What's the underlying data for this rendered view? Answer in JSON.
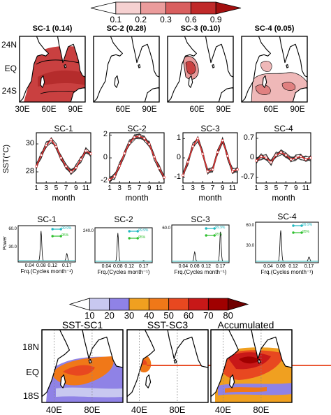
{
  "colorbar_top": {
    "ticks": [
      "0.1",
      "0.2",
      "0.3",
      "0.6",
      "0.9"
    ],
    "colors": [
      "#ffffff",
      "#f6d1d1",
      "#eb9c9c",
      "#d95f5f",
      "#c02a2a",
      "#a30f0f"
    ]
  },
  "maps_row1": {
    "titles": [
      "SC-1 (0.14)",
      "SC-2 (0.28)",
      "SC-3 (0.10)",
      "SC-4 (0.05)"
    ],
    "lat_labels": [
      "24N",
      "EQ",
      "24S"
    ],
    "lon_labels": [
      "30E",
      "60E",
      "90E"
    ]
  },
  "ts_row": {
    "titles": [
      "SC-1",
      "SC-2",
      "SC-3",
      "SC-4"
    ],
    "ylabel": "SST(°C)",
    "xlabel": "month",
    "xticks": [
      "1",
      "3",
      "5",
      "7",
      "9",
      "11"
    ],
    "yticks": [
      [
        "30",
        "28"
      ],
      [
        "2",
        "0",
        "-2"
      ],
      [
        "1",
        "0",
        "-1"
      ],
      [
        "0.7",
        "0",
        "-0.7"
      ]
    ]
  },
  "spectra_row": {
    "titles": [
      "SC-1",
      "SC-2",
      "SC-3",
      "SC-4"
    ],
    "ylabel": "Power",
    "xlabel": "Frq.(Cycles month⁻¹)",
    "xticks": [
      "0.04",
      "0.08",
      "0.12",
      "0.17"
    ],
    "yticks": [
      [
        "60.0",
        "30.0"
      ],
      [
        "240.0"
      ],
      [
        "60.0"
      ],
      [
        "60.0",
        "30.0"
      ]
    ],
    "legend": [
      "99.9%",
      "95%"
    ]
  },
  "colorbar_bottom": {
    "ticks": [
      "10",
      "20",
      "30",
      "40",
      "50",
      "60",
      "70",
      "80"
    ],
    "colors": [
      "#ffffff",
      "#c8c8f0",
      "#8f82e6",
      "#f0a020",
      "#f07818",
      "#e84820",
      "#c81818",
      "#a00000",
      "#700000"
    ]
  },
  "maps_row2": {
    "titles": [
      "SST-SC1",
      "SST-SC3",
      "Accumulated"
    ],
    "lat_labels": [
      "18N",
      "EQ",
      "18S"
    ],
    "lon_labels": [
      "40E",
      "80E"
    ]
  },
  "chart_data": [
    {
      "type": "line",
      "title": "SC-1",
      "xlabel": "month",
      "ylabel": "SST(°C)",
      "x": [
        1,
        2,
        3,
        4,
        5,
        6,
        7,
        8,
        9,
        10,
        11,
        12
      ],
      "values": [
        28.4,
        29.2,
        29.9,
        30.3,
        29.8,
        29.0,
        28.4,
        28.0,
        28.3,
        28.9,
        29.5,
        29.3
      ],
      "ylim": [
        27.2,
        30.8
      ]
    },
    {
      "type": "line",
      "title": "SC-2",
      "xlabel": "month",
      "x": [
        1,
        2,
        3,
        4,
        5,
        6,
        7,
        8,
        9,
        10,
        11,
        12
      ],
      "values": [
        -1.9,
        -1.6,
        -0.7,
        0.4,
        1.3,
        1.8,
        1.9,
        1.7,
        1.2,
        0.1,
        -0.9,
        -1.7
      ],
      "ylim": [
        -2.2,
        2.2
      ]
    },
    {
      "type": "line",
      "title": "SC-3",
      "xlabel": "month",
      "x": [
        1,
        2,
        3,
        4,
        5,
        6,
        7,
        8,
        9,
        10,
        11,
        12
      ],
      "values": [
        -0.9,
        -0.2,
        0.6,
        1.0,
        0.2,
        -0.7,
        -0.6,
        0.3,
        0.9,
        0.1,
        -0.7,
        -0.6
      ],
      "ylim": [
        -1.3,
        1.3
      ]
    },
    {
      "type": "line",
      "title": "SC-4",
      "xlabel": "month",
      "x": [
        1,
        2,
        3,
        4,
        5,
        6,
        7,
        8,
        9,
        10,
        11,
        12
      ],
      "values": [
        -0.1,
        0.05,
        0.0,
        -0.15,
        0.1,
        0.2,
        0.1,
        -0.05,
        0.0,
        0.05,
        -0.05,
        0.0
      ],
      "ylim": [
        -0.9,
        0.9
      ]
    }
  ]
}
